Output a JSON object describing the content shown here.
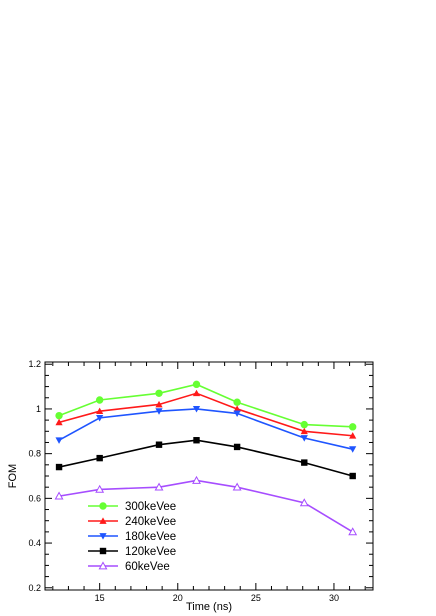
{
  "chart_data": {
    "type": "line",
    "xlabel": "Time (ns)",
    "ylabel": "FOM",
    "xlim": [
      11.5,
      32.5
    ],
    "ylim": [
      0.19,
      1.21
    ],
    "xticks": [
      15,
      20,
      25,
      30
    ],
    "yticks": [
      0.2,
      0.4,
      0.6,
      0.8,
      1,
      1.2
    ],
    "x": [
      12.4,
      15.0,
      18.8,
      21.2,
      23.8,
      28.1,
      31.2
    ],
    "grid": false,
    "legend_position": "bottom-left",
    "series": [
      {
        "name": "300keVee",
        "color": "#66ff33",
        "marker": "circle",
        "values": [
          0.97,
          1.04,
          1.07,
          1.11,
          1.03,
          0.93,
          0.92
        ]
      },
      {
        "name": "240keVee",
        "color": "#ff1a1a",
        "marker": "triangle-up",
        "values": [
          0.94,
          0.99,
          1.02,
          1.07,
          1.0,
          0.9,
          0.88
        ]
      },
      {
        "name": "180keVee",
        "color": "#1f55ff",
        "marker": "triangle-down",
        "values": [
          0.86,
          0.96,
          0.99,
          1.0,
          0.98,
          0.87,
          0.82
        ]
      },
      {
        "name": "120keVee",
        "color": "#000000",
        "marker": "square",
        "values": [
          0.74,
          0.78,
          0.84,
          0.86,
          0.83,
          0.76,
          0.7
        ]
      },
      {
        "name": "60keVee",
        "color": "#a64dff",
        "marker": "triangle-up-open",
        "values": [
          0.61,
          0.64,
          0.65,
          0.68,
          0.65,
          0.58,
          0.45
        ]
      }
    ]
  }
}
